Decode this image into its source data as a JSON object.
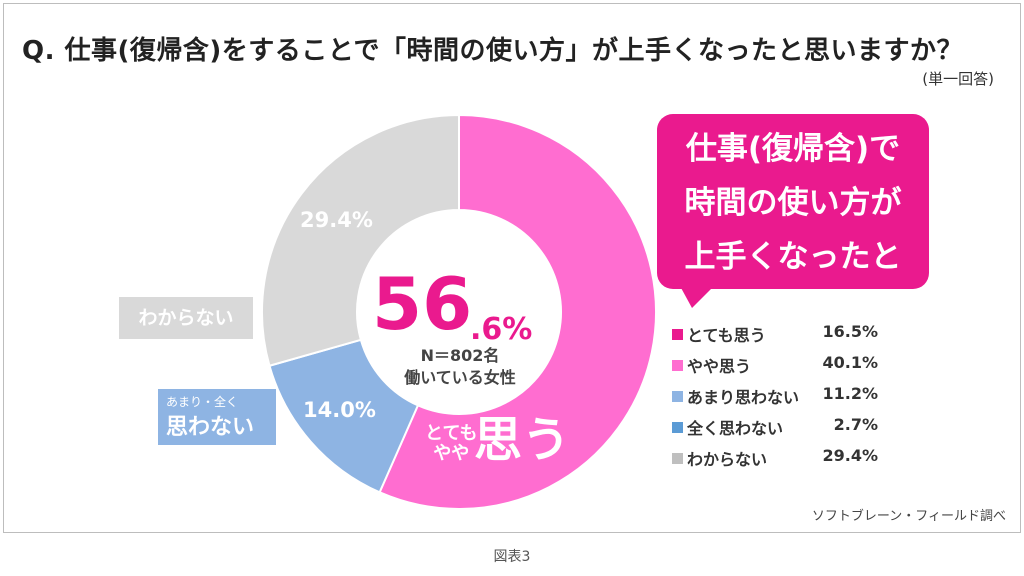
{
  "header": {
    "title": "Q.  仕事(復帰含)をすることで「時間の使い方」が上手くなったと思いますか？",
    "subtitle": "(単一回答)"
  },
  "callout": {
    "lines": [
      "仕事(復帰含)で",
      "時間の使い方が",
      "上手くなったと"
    ]
  },
  "center": {
    "big": "56",
    "small": ".6%",
    "n": "N＝802名",
    "who": "働いている女性"
  },
  "overlay": {
    "omou_small_1": "とても",
    "omou_small_2": "やや",
    "omou_big": "思う",
    "gray_label": "わからない",
    "blue_label_small": "あまり・全く",
    "blue_label_big": "思わない",
    "gray_pct": "29.4%",
    "blue_pct": "14.0%"
  },
  "legend": [
    {
      "label": "とても思う",
      "value": "16.5%",
      "color": "#ea1a8e"
    },
    {
      "label": "やや思う",
      "value": "40.1%",
      "color": "#ff6dd0"
    },
    {
      "label": "あまり思わない",
      "value": "11.2%",
      "color": "#8eb4e3"
    },
    {
      "label": "全く思わない",
      "value": "2.7%",
      "color": "#5b9bd5"
    },
    {
      "label": "わからない",
      "value": "29.4%",
      "color": "#bfbfbf"
    }
  ],
  "chart_data": {
    "type": "pie",
    "donut": true,
    "categories": [
      "思う（とても・やや）",
      "あまり・全く思わない",
      "わからない"
    ],
    "values": [
      56.6,
      14.0,
      29.4
    ],
    "colors": [
      "#ff6dd0",
      "#8eb4e3",
      "#d9d9d9"
    ],
    "breakdown": [
      {
        "label": "とても思う",
        "value": 16.5
      },
      {
        "label": "やや思う",
        "value": 40.1
      },
      {
        "label": "あまり思わない",
        "value": 11.2
      },
      {
        "label": "全く思わない",
        "value": 2.7
      },
      {
        "label": "わからない",
        "value": 29.4
      }
    ]
  },
  "footer": {
    "source": "ソフトブレーン・フィールド調べ",
    "figure": "図表3"
  }
}
